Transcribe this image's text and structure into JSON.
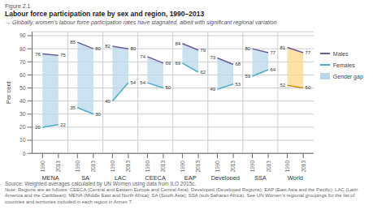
{
  "chart_data": {
    "type": "line",
    "figure_label": "Figure 2.1",
    "title": "Labour force participation rate by sex and region, 1990–2013",
    "subtitle": "→ Globally, women’s labour force participation rates have stagnated, albeit with significant regional variation",
    "ylabel": "Per cent",
    "categories": [
      "1990",
      "2013",
      null,
      "1990",
      "2013",
      null,
      "1990",
      "2013",
      null,
      "1990",
      "2013",
      null,
      "1990",
      "2013",
      null,
      "1990",
      "2013",
      null,
      "1990",
      "2013",
      null,
      "1990",
      "2013"
    ],
    "annotations": [
      "MENA",
      "SA",
      "LAC",
      "CEECA",
      "EAP",
      "Developed",
      "SSA",
      "World"
    ],
    "series": [
      {
        "name": "Males",
        "type": "line",
        "color": "#6b5b9b",
        "values": [
          76,
          75,
          null,
          85,
          80,
          null,
          82,
          80,
          null,
          74,
          69,
          null,
          84,
          79,
          null,
          73,
          68,
          null,
          80,
          77,
          null,
          81,
          77
        ]
      },
      {
        "name": "Females",
        "type": "line",
        "color": "#4aaccc",
        "colors": [
          "#4aaccc",
          "#4aaccc",
          null,
          "#4aaccc",
          "#4aaccc",
          null,
          "#4aaccc",
          "#4aaccc",
          null,
          "#4aaccc",
          "#4aaccc",
          null,
          "#4aaccc",
          "#4aaccc",
          null,
          "#4aaccc",
          "#4aaccc",
          null,
          "#4aaccc",
          "#4aaccc",
          null,
          "#d4900a",
          "#d4900a"
        ],
        "values": [
          20,
          22,
          null,
          35,
          30,
          null,
          40,
          54,
          null,
          54,
          50,
          null,
          69,
          62,
          null,
          49,
          53,
          null,
          59,
          64,
          null,
          52,
          50
        ]
      },
      {
        "name": "Gender gap",
        "type": "area",
        "color": "#b8d8e8",
        "colors": [
          "#b8d8e8",
          "#b8d8e8",
          null,
          "#b8d8e8",
          "#b8d8e8",
          null,
          "#b8d8e8",
          "#b8d8e8",
          null,
          "#b8d8e8",
          "#b8d8e8",
          null,
          "#b8d8e8",
          "#b8d8e8",
          null,
          "#b8d8e8",
          "#b8d8e8",
          null,
          "#b8d8e8",
          "#b8d8e8",
          null,
          "#fcd88a",
          "#fcd88a"
        ],
        "values": [
          [
            20,
            76
          ],
          [
            22,
            75
          ],
          null,
          [
            35,
            85
          ],
          [
            30,
            80
          ],
          null,
          [
            40,
            82
          ],
          [
            54,
            80
          ],
          null,
          [
            54,
            74
          ],
          [
            50,
            69
          ],
          null,
          [
            69,
            84
          ],
          [
            62,
            79
          ],
          null,
          [
            49,
            73
          ],
          [
            53,
            68
          ],
          null,
          [
            59,
            80
          ],
          [
            64,
            77
          ],
          null,
          [
            52,
            81
          ],
          [
            50,
            77
          ]
        ]
      }
    ],
    "ylim": [
      0,
      93
    ],
    "yticks": [
      0,
      10,
      20,
      30,
      40,
      50,
      60,
      70,
      80,
      90
    ],
    "grid": true,
    "legend": "right",
    "data_labels": true,
    "source": "Source: Weighted averages calculated by UN Women using data from ILO 2015c.",
    "note": "Note: Regions are as follows: CEECA (Central and Eastern Europe and Central Asia); Developed (Developed Regions); EAP (East Asia and the Pacific); LAC (Latin America and the Caribbean); MENA (Middle East and North Africa); SA (South Asia); SSA (sub-Saharan Africa). See UN Women’s regional groupings for the list of countries and territories included in each region in Annex 7."
  }
}
